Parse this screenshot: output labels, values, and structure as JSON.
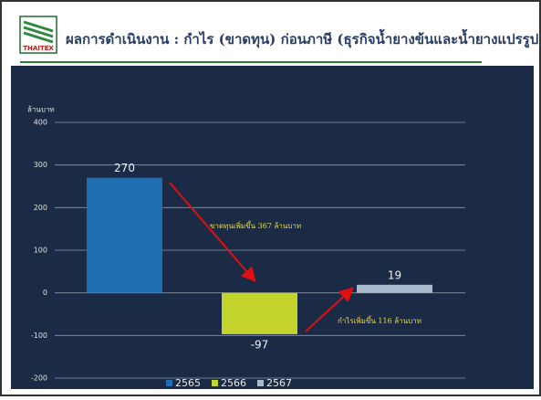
{
  "logo": "THAITEX",
  "chart_data": {
    "type": "bar",
    "title": "ผลการดำเนินงาน : กำไร (ขาดทุน) ก่อนภาษี (ธุรกิจน้ำยางข้นและน้ำยางแปรรูป)",
    "y_label": "ล้านบาท",
    "categories": [
      null
    ],
    "series": [
      {
        "name": "2565",
        "color": "#1f6db3",
        "values": [
          270
        ]
      },
      {
        "name": "2566",
        "color": "#c3d52c",
        "values": [
          -97
        ]
      },
      {
        "name": "2567",
        "color": "#a7bbcc",
        "values": [
          19
        ]
      }
    ],
    "ylim": [
      -200,
      400
    ],
    "yticks": [
      -200,
      -100,
      0,
      100,
      200,
      300,
      400
    ],
    "grid": true,
    "annotations": [
      "ขาดทุนเพิ่มขึ้น 367 ล้านบาท",
      "กำไรเพิ่มขึ้น 116 ล้านบาท"
    ],
    "legend": "bottom"
  }
}
